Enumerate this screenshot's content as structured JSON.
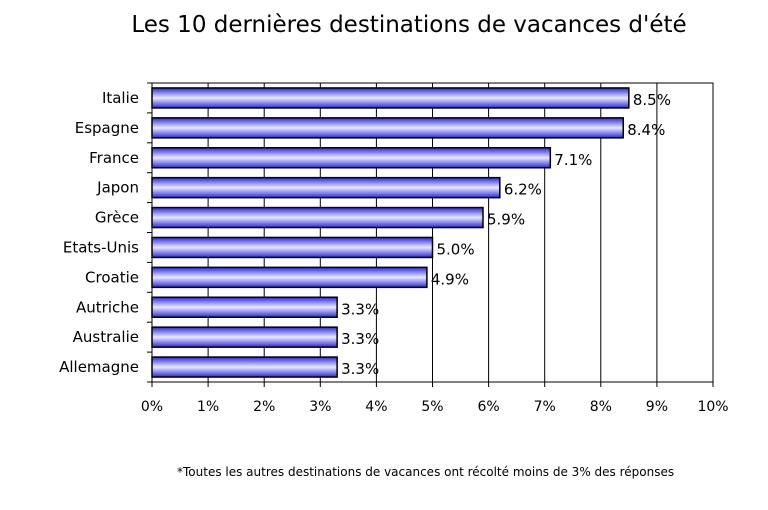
{
  "chart_data": {
    "type": "bar",
    "orientation": "horizontal",
    "title": "Les 10 dernières destinations de vacances d'été",
    "xlabel": "",
    "ylabel": "",
    "categories": [
      "Italie",
      "Espagne",
      "France",
      "Japon",
      "Grèce",
      "Etats-Unis",
      "Croatie",
      "Autriche",
      "Australie",
      "Allemagne"
    ],
    "values": [
      8.5,
      8.4,
      7.1,
      6.2,
      5.9,
      5.0,
      4.9,
      3.3,
      3.3,
      3.3
    ],
    "value_labels": [
      "8.5%",
      "8.4%",
      "7.1%",
      "6.2%",
      "5.9%",
      "5.0%",
      "4.9%",
      "3.3%",
      "3.3%",
      "3.3%"
    ],
    "xlim": [
      0,
      10
    ],
    "xticks": [
      "0%",
      "1%",
      "2%",
      "3%",
      "4%",
      "5%",
      "6%",
      "7%",
      "8%",
      "9%",
      "10%"
    ],
    "grid": "vertical",
    "legend": "none",
    "colors": {
      "bar_dark": "#2a2ad8",
      "bar_light": "#e8e8ff",
      "bar_outline": "#000000",
      "grid": "#000000"
    }
  },
  "footnote": "*Toutes les autres destinations de vacances ont récolté moins de 3% des réponses"
}
